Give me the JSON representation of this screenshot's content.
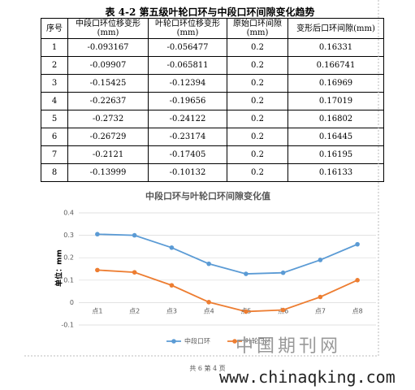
{
  "document": {
    "caption": "表 4-2  第五级叶轮口环与中段口环间隙变化趋势",
    "footer": "共 6  第 4 页",
    "watermark_cn": "中国期刊网",
    "watermark_url": "www.chinaqking.com"
  },
  "table": {
    "header": [
      "序号",
      "中段口环位移变形(mm)",
      "叶轮口环位移变形(mm)",
      "原始口环间隙(mm)",
      "变形后口环间隙(mm)"
    ],
    "rows": [
      [
        "1",
        "-0.093167",
        "-0.056477",
        "0.2",
        "0.16331"
      ],
      [
        "2",
        "-0.09907",
        "-0.065811",
        "0.2",
        "0.166741"
      ],
      [
        "3",
        "-0.15425",
        "-0.12394",
        "0.2",
        "0.16969"
      ],
      [
        "4",
        "-0.22637",
        "-0.19656",
        "0.2",
        "0.17019"
      ],
      [
        "5",
        "-0.2732",
        "-0.24122",
        "0.2",
        "0.16802"
      ],
      [
        "6",
        "-0.26729",
        "-0.23174",
        "0.2",
        "0.16445"
      ],
      [
        "7",
        "-0.2121",
        "-0.17405",
        "0.2",
        "0.16195"
      ],
      [
        "8",
        "-0.13999",
        "-0.10132",
        "0.2",
        "0.16133"
      ]
    ]
  },
  "chart_data": {
    "type": "line",
    "title": "中段口环与叶轮口环间隙变化值",
    "y_label": "单位：mm",
    "categories": [
      "点1",
      "点2",
      "点3",
      "点4",
      "点5",
      "点6",
      "点7",
      "点8"
    ],
    "series": [
      {
        "name": "中段口环",
        "color": "#5b9bd5",
        "values": [
          0.305,
          0.3,
          0.245,
          0.173,
          0.128,
          0.133,
          0.19,
          0.26
        ]
      },
      {
        "name": "叶轮口环",
        "color": "#ed7d31",
        "values": [
          0.145,
          0.135,
          0.077,
          0.002,
          -0.04,
          -0.033,
          0.025,
          0.1
        ]
      }
    ],
    "ylim": [
      -0.1,
      0.4
    ],
    "yticks": [
      -0.1,
      0,
      0.1,
      0.2,
      0.3,
      0.4
    ],
    "grid": true
  }
}
